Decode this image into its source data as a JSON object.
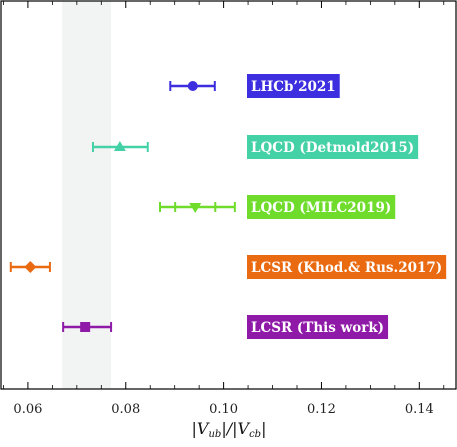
{
  "chart_data": {
    "type": "scatter",
    "xlabel": "|V_ub|/|V_cb|",
    "xlim": [
      0.0545,
      0.1475
    ],
    "x_ticks": [
      "0.06",
      "0.08",
      "0.10",
      "0.12",
      "0.14"
    ],
    "x_tick_values": [
      0.06,
      0.08,
      0.1,
      0.12,
      0.14
    ],
    "grid": false,
    "shaded_band": {
      "x_from": 0.067,
      "x_to": 0.077,
      "color": "#f2f3f3"
    },
    "series": [
      {
        "name": "LHCb’2021",
        "marker": "circle",
        "color": "#3d2ee0",
        "value": 0.0937,
        "err_low": 0.0891,
        "err_high": 0.0982
      },
      {
        "name": "LQCD (Detmold2015)",
        "marker": "triangle-up",
        "color": "#45d1a6",
        "value": 0.0788,
        "err_low": 0.0733,
        "err_high": 0.0845
      },
      {
        "name": "LQCD (MILC2019)",
        "marker": "triangle-down",
        "color": "#6fdc2c",
        "value": 0.0942,
        "err_low": 0.087,
        "err_high": 0.1023,
        "inner_err_low": 0.0901,
        "inner_err_high": 0.0983
      },
      {
        "name": "LCSR (Khod.& Rus.2017)",
        "marker": "diamond",
        "color": "#ea6a12",
        "value": 0.0605,
        "err_low": 0.0565,
        "err_high": 0.0645
      },
      {
        "name": "LCSR (This work)",
        "marker": "square",
        "color": "#8f1aa8",
        "value": 0.0717,
        "err_low": 0.0672,
        "err_high": 0.077
      }
    ]
  }
}
